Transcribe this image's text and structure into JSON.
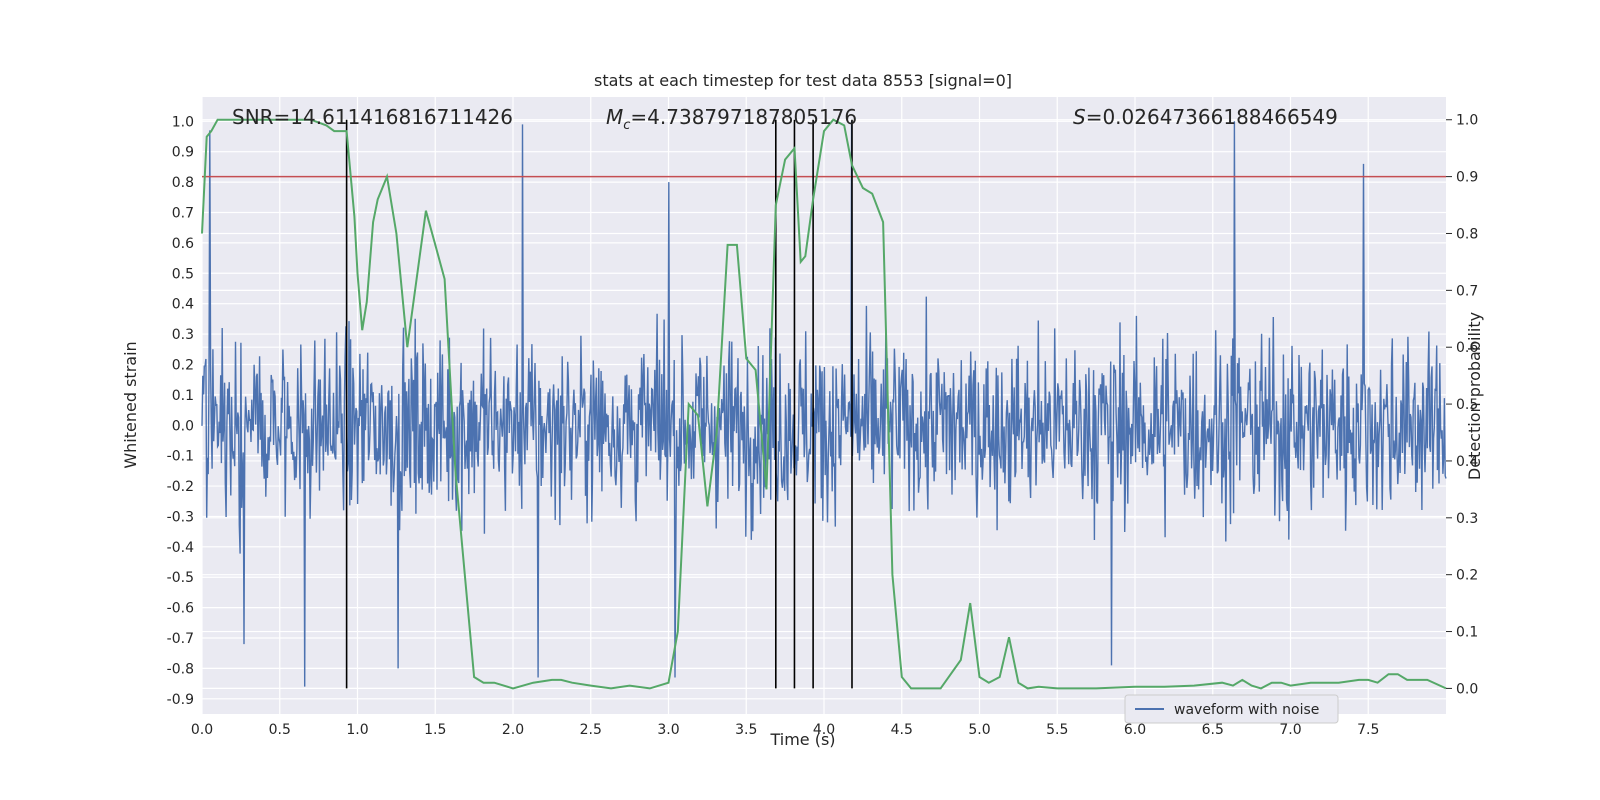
{
  "chart_data": {
    "type": "line",
    "title": "stats at each timestep for test data 8553 [signal=0]",
    "xlabel": "Time (s)",
    "ylabel": "Whitened strain",
    "y2label": "Detection probability",
    "xlim": [
      0.0,
      8.0
    ],
    "ylim": [
      -0.95,
      1.08
    ],
    "y2lim": [
      -0.045,
      1.04
    ],
    "xticks": [
      "0.0",
      "0.5",
      "1.0",
      "1.5",
      "2.0",
      "2.5",
      "3.0",
      "3.5",
      "4.0",
      "4.5",
      "5.0",
      "5.5",
      "6.0",
      "6.5",
      "7.0",
      "7.5"
    ],
    "yticks": [
      "1.0",
      "0.9",
      "0.8",
      "0.7",
      "0.6",
      "0.5",
      "0.4",
      "0.3",
      "0.2",
      "0.1",
      "0.0",
      "-0.1",
      "-0.2",
      "-0.3",
      "-0.4",
      "-0.5",
      "-0.6",
      "-0.7",
      "-0.8",
      "-0.9"
    ],
    "y2ticks": [
      "1.0",
      "0.9",
      "0.8",
      "0.7",
      "0.6",
      "0.5",
      "0.4",
      "0.3",
      "0.2",
      "0.1",
      "0.0"
    ],
    "grid": true,
    "legend": {
      "position": "bottom-center",
      "entries": [
        "waveform with noise"
      ]
    },
    "annotations": {
      "snr": "SNR=14.611416816711426",
      "mc_symbol": "M",
      "mc_sub": "c",
      "mc_value": "=4.738797187805176",
      "s_symbol": "S",
      "s_value": "=0.02647366188466549"
    },
    "threshold": {
      "axis": "y2",
      "value": 0.9,
      "color": "#c44e52"
    },
    "vlines": [
      0.93,
      3.69,
      3.81,
      3.93,
      4.18
    ],
    "series": [
      {
        "name": "waveform with noise",
        "axis": "y",
        "color": "#4c72b0",
        "kind": "noise",
        "sample_count": 1600,
        "typical_envelope": [
          -0.4,
          0.42
        ],
        "peaks": [
          {
            "t": 0.05,
            "v": 0.97
          },
          {
            "t": 0.66,
            "v": -0.86
          },
          {
            "t": 2.06,
            "v": 0.99
          },
          {
            "t": 2.16,
            "v": -0.83
          },
          {
            "t": 3.0,
            "v": 0.8
          },
          {
            "t": 3.04,
            "v": -0.83
          },
          {
            "t": 6.64,
            "v": 1.0
          },
          {
            "t": 7.47,
            "v": 0.86
          },
          {
            "t": 0.27,
            "v": -0.72
          },
          {
            "t": 4.18,
            "v": 1.0
          },
          {
            "t": 5.85,
            "v": -0.79
          },
          {
            "t": 1.26,
            "v": -0.8
          }
        ]
      },
      {
        "name": "detection probability",
        "axis": "y2",
        "color": "#55a868",
        "x": [
          0.0,
          0.03,
          0.06,
          0.1,
          0.15,
          0.2,
          0.3,
          0.4,
          0.5,
          0.6,
          0.65,
          0.7,
          0.8,
          0.85,
          0.9,
          0.93,
          0.98,
          1.0,
          1.03,
          1.06,
          1.1,
          1.13,
          1.19,
          1.25,
          1.32,
          1.38,
          1.44,
          1.5,
          1.56,
          1.63,
          1.69,
          1.75,
          1.81,
          1.88,
          2.0,
          2.13,
          2.25,
          2.31,
          2.38,
          2.5,
          2.63,
          2.75,
          2.88,
          3.0,
          3.06,
          3.13,
          3.19,
          3.25,
          3.31,
          3.38,
          3.44,
          3.5,
          3.56,
          3.63,
          3.66,
          3.69,
          3.75,
          3.81,
          3.85,
          3.88,
          3.93,
          4.0,
          4.06,
          4.13,
          4.18,
          4.25,
          4.31,
          4.38,
          4.44,
          4.5,
          4.56,
          4.63,
          4.75,
          4.88,
          4.94,
          5.0,
          5.06,
          5.13,
          5.19,
          5.25,
          5.31,
          5.38,
          5.5,
          5.75,
          6.0,
          6.19,
          6.38,
          6.56,
          6.63,
          6.69,
          6.75,
          6.81,
          6.88,
          6.94,
          7.0,
          7.13,
          7.31,
          7.44,
          7.5,
          7.56,
          7.63,
          7.69,
          7.75,
          7.88,
          8.0
        ],
        "y": [
          0.8,
          0.97,
          0.98,
          1.0,
          1.0,
          1.0,
          1.0,
          1.0,
          1.0,
          1.0,
          1.0,
          1.0,
          0.99,
          0.98,
          0.98,
          0.98,
          0.83,
          0.73,
          0.63,
          0.68,
          0.82,
          0.86,
          0.9,
          0.8,
          0.6,
          0.72,
          0.84,
          0.78,
          0.72,
          0.38,
          0.2,
          0.02,
          0.01,
          0.01,
          0.0,
          0.01,
          0.015,
          0.015,
          0.01,
          0.005,
          0.0,
          0.005,
          0.0,
          0.01,
          0.1,
          0.5,
          0.48,
          0.32,
          0.45,
          0.78,
          0.78,
          0.58,
          0.56,
          0.35,
          0.6,
          0.85,
          0.93,
          0.95,
          0.75,
          0.76,
          0.86,
          0.98,
          1.0,
          0.99,
          0.92,
          0.88,
          0.87,
          0.82,
          0.2,
          0.02,
          0.0,
          0.0,
          0.0,
          0.05,
          0.15,
          0.02,
          0.01,
          0.02,
          0.09,
          0.01,
          0.0,
          0.003,
          0.0,
          0.0,
          0.003,
          0.003,
          0.005,
          0.01,
          0.005,
          0.015,
          0.005,
          0.0,
          0.01,
          0.01,
          0.005,
          0.01,
          0.01,
          0.015,
          0.015,
          0.01,
          0.025,
          0.025,
          0.015,
          0.015,
          0.0
        ]
      }
    ]
  }
}
